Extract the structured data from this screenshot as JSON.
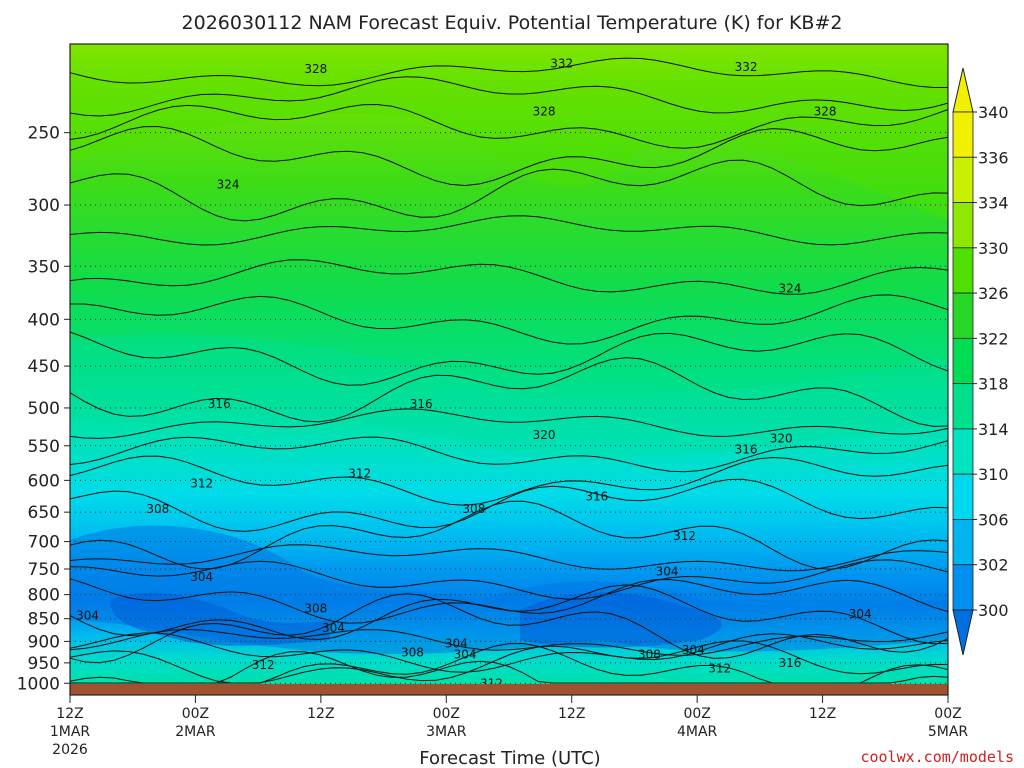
{
  "chart_data": {
    "type": "contour",
    "title": "2026030112 NAM Forecast Equiv. Potential Temperature (K) for KB#2",
    "xlabel": "Forecast Time (UTC)",
    "ylabel": "",
    "x_ticks": [
      {
        "hours": 0,
        "line1": "12Z",
        "line2": "1MAR",
        "line3": "2026"
      },
      {
        "hours": 12,
        "line1": "00Z",
        "line2": "2MAR",
        "line3": ""
      },
      {
        "hours": 24,
        "line1": "12Z",
        "line2": "",
        "line3": ""
      },
      {
        "hours": 36,
        "line1": "00Z",
        "line2": "3MAR",
        "line3": ""
      },
      {
        "hours": 48,
        "line1": "12Z",
        "line2": "",
        "line3": ""
      },
      {
        "hours": 60,
        "line1": "00Z",
        "line2": "4MAR",
        "line3": ""
      },
      {
        "hours": 72,
        "line1": "12Z",
        "line2": "",
        "line3": ""
      },
      {
        "hours": 84,
        "line1": "00Z",
        "line2": "5MAR",
        "line3": ""
      }
    ],
    "y_ticks": [
      "250",
      "300",
      "350",
      "400",
      "450",
      "500",
      "550",
      "600",
      "650",
      "700",
      "750",
      "800",
      "850",
      "900",
      "950",
      "1000"
    ],
    "ylim_hpa": [
      200,
      1030
    ],
    "y_scale": "log",
    "colorbar": {
      "labels": [
        "340",
        "336",
        "334",
        "330",
        "326",
        "322",
        "318",
        "314",
        "310",
        "306",
        "302",
        "300"
      ],
      "colors": [
        "#f0f000",
        "#c8f000",
        "#90e800",
        "#50e000",
        "#28d828",
        "#00dd55",
        "#00e08c",
        "#00e4c0",
        "#00d8f0",
        "#00b4f0",
        "#0090f0",
        "#0070e0"
      ]
    },
    "contour_labels": [
      {
        "text": "332",
        "x": 56,
        "p": 210
      },
      {
        "text": "332",
        "x": 77,
        "p": 212
      },
      {
        "text": "328",
        "x": 28,
        "p": 213
      },
      {
        "text": "328",
        "x": 54,
        "p": 237
      },
      {
        "text": "328",
        "x": 86,
        "p": 237
      },
      {
        "text": "324",
        "x": 18,
        "p": 285
      },
      {
        "text": "324",
        "x": 82,
        "p": 370
      },
      {
        "text": "320",
        "x": 54,
        "p": 535
      },
      {
        "text": "320",
        "x": 81,
        "p": 540
      },
      {
        "text": "316",
        "x": 17,
        "p": 495
      },
      {
        "text": "316",
        "x": 40,
        "p": 495
      },
      {
        "text": "316",
        "x": 77,
        "p": 555
      },
      {
        "text": "316",
        "x": 60,
        "p": 625
      },
      {
        "text": "316",
        "x": 82,
        "p": 950
      },
      {
        "text": "312",
        "x": 15,
        "p": 605
      },
      {
        "text": "312",
        "x": 33,
        "p": 590
      },
      {
        "text": "312",
        "x": 70,
        "p": 690
      },
      {
        "text": "312",
        "x": 22,
        "p": 955
      },
      {
        "text": "312",
        "x": 48,
        "p": 1000
      },
      {
        "text": "312",
        "x": 74,
        "p": 963
      },
      {
        "text": "308",
        "x": 10,
        "p": 645
      },
      {
        "text": "308",
        "x": 46,
        "p": 645
      },
      {
        "text": "308",
        "x": 28,
        "p": 828
      },
      {
        "text": "308",
        "x": 39,
        "p": 925
      },
      {
        "text": "308",
        "x": 66,
        "p": 930
      },
      {
        "text": "304",
        "x": 15,
        "p": 765
      },
      {
        "text": "304",
        "x": 68,
        "p": 755
      },
      {
        "text": "304",
        "x": 2,
        "p": 843
      },
      {
        "text": "304",
        "x": 30,
        "p": 870
      },
      {
        "text": "304",
        "x": 44,
        "p": 905
      },
      {
        "text": "304",
        "x": 45,
        "p": 930
      },
      {
        "text": "304",
        "x": 71,
        "p": 920
      },
      {
        "text": "304",
        "x": 90,
        "p": 840
      }
    ]
  },
  "credit": "coolwx.com/models"
}
